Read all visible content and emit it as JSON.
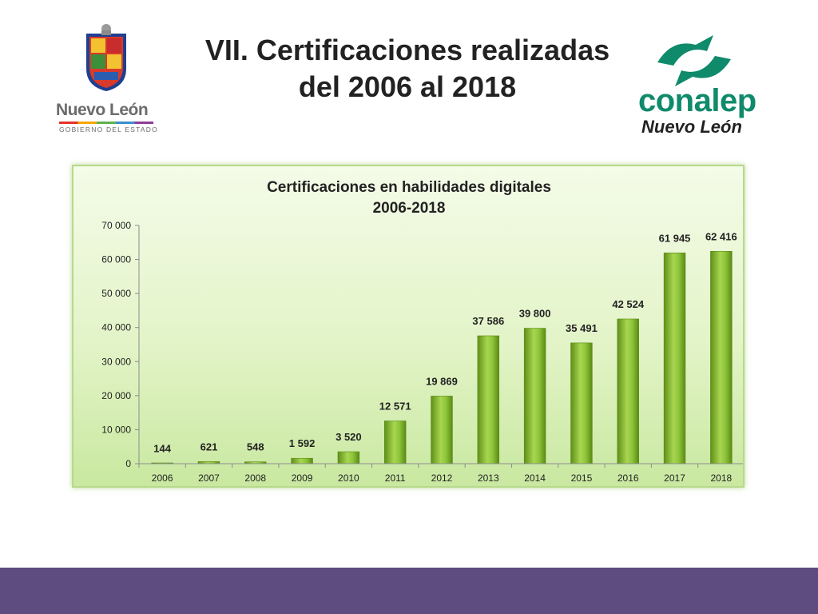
{
  "slide": {
    "title_line1": "VII. Certificaciones realizadas",
    "title_line2": "del 2006 al 2018"
  },
  "logos": {
    "left": {
      "wordmark": "Nuevo León",
      "subtitle": "GOBIERNO DEL ESTADO",
      "shield_icon": "state-coat-of-arms-icon"
    },
    "right": {
      "wordmark": "conalep",
      "subtitle": "Nuevo León",
      "mark_icon": "conalep-mark-icon",
      "color": "#0f8a6b"
    }
  },
  "colors": {
    "bar_dark": "#6a9a1e",
    "bar_mid": "#8fc43a",
    "bar_light": "#c6e87a",
    "panel_border": "#b7d98a",
    "footer_band": "#5e4b7f"
  },
  "chart_data": {
    "type": "bar",
    "title": "Certificaciones en habilidades digitales",
    "subtitle": "2006-2018",
    "xlabel": "",
    "ylabel": "",
    "categories": [
      "2006",
      "2007",
      "2008",
      "2009",
      "2010",
      "2011",
      "2012",
      "2013",
      "2014",
      "2015",
      "2016",
      "2017",
      "2018"
    ],
    "values": [
      144,
      621,
      548,
      1592,
      3520,
      12571,
      19869,
      37586,
      39800,
      35491,
      42524,
      61945,
      62416
    ],
    "value_labels": [
      "144",
      "621",
      "548",
      "1 592",
      "3 520",
      "12 571",
      "19 869",
      "37 586",
      "39 800",
      "35 491",
      "42 524",
      "61 945",
      "62 416"
    ],
    "ylim": [
      0,
      70000
    ],
    "yticks": [
      0,
      10000,
      20000,
      30000,
      40000,
      50000,
      60000,
      70000
    ],
    "ytick_labels": [
      "0",
      "10 000",
      "20 000",
      "30 000",
      "40 000",
      "50 000",
      "60 000",
      "70 000"
    ],
    "grid": false,
    "legend": "none"
  }
}
